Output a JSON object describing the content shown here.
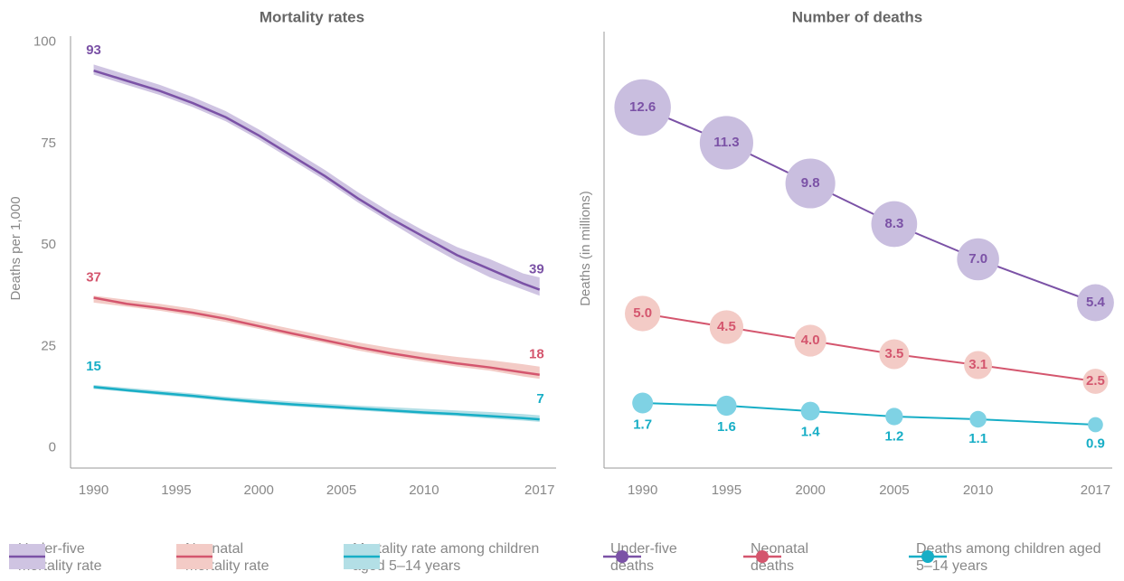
{
  "chart_data": [
    {
      "type": "line",
      "title": "Mortality rates",
      "y_label": "Deaths per 1,000",
      "x": [
        1990,
        1992,
        1994,
        1996,
        1998,
        2000,
        2002,
        2004,
        2006,
        2008,
        2010,
        2012,
        2014,
        2016,
        2017
      ],
      "xlim": [
        1988.6,
        2018
      ],
      "ylim": [
        -5,
        101.5
      ],
      "xticks": [
        1990,
        1995,
        2000,
        2005,
        2010,
        2017
      ],
      "yticks": [
        0,
        25,
        50,
        75,
        100
      ],
      "grid": false,
      "legend": "bottom",
      "series": [
        {
          "name": "Under-five mortality rate",
          "color": "#7b52a6",
          "band_color": "#cfc4e2",
          "values": [
            93,
            90.5,
            88,
            85,
            81.5,
            77,
            72,
            67,
            61.5,
            56.5,
            52,
            47.5,
            44,
            40.5,
            39
          ],
          "lower": [
            92,
            89.5,
            87,
            84,
            80.5,
            76,
            71,
            66,
            60.5,
            55.5,
            50.5,
            46,
            42,
            39,
            37.5
          ],
          "upper": [
            94.5,
            92,
            89.5,
            86.5,
            83,
            78.5,
            73.5,
            68.5,
            63,
            58,
            53.5,
            49.5,
            46.5,
            43,
            42
          ]
        },
        {
          "name": "Neonatal mortality rate",
          "color": "#d4566e",
          "band_color": "#f3cbc6",
          "values": [
            37,
            35.5,
            34.5,
            33.3,
            31.8,
            30,
            28.2,
            26.5,
            24.8,
            23.3,
            22,
            20.8,
            19.8,
            18.6,
            18
          ],
          "lower": [
            35.8,
            34.8,
            33.8,
            32.5,
            31,
            29.3,
            27.5,
            25.8,
            24,
            22.5,
            21.2,
            20,
            19,
            17.6,
            17
          ],
          "upper": [
            37.5,
            36.5,
            35.5,
            34.3,
            32.8,
            31,
            29.3,
            27.6,
            26,
            24.6,
            23.4,
            22.4,
            21.6,
            20.6,
            20
          ]
        },
        {
          "name": "Mortality rate among children aged 5–14 years",
          "color": "#17aec6",
          "band_color": "#b3dfe6",
          "values": [
            15,
            14.2,
            13.5,
            12.8,
            12,
            11.3,
            10.7,
            10.2,
            9.7,
            9.2,
            8.7,
            8.3,
            7.8,
            7.3,
            7
          ],
          "lower": [
            14.5,
            13.8,
            13,
            12.3,
            11.5,
            10.8,
            10.2,
            9.7,
            9.2,
            8.7,
            8.2,
            7.8,
            7.2,
            6.7,
            6.4
          ],
          "upper": [
            15.5,
            14.8,
            14.1,
            13.4,
            12.6,
            12,
            11.4,
            10.9,
            10.4,
            10,
            9.6,
            9.2,
            8.8,
            8.3,
            8
          ]
        }
      ]
    },
    {
      "type": "bubble",
      "title": "Number of deaths",
      "y_label": "Deaths (in millions)",
      "x": [
        1990,
        1995,
        2000,
        2005,
        2010,
        2017
      ],
      "xlim": [
        1987.7,
        2018
      ],
      "ylim": [
        -0.7,
        15.4
      ],
      "xticks": [
        1990,
        1995,
        2000,
        2005,
        2010,
        2017
      ],
      "legend": "bottom",
      "series": [
        {
          "name": "Under-five deaths",
          "color": "#7b52a6",
          "fill": "#c9bedf",
          "label_position": "inside",
          "values": [
            12.6,
            11.3,
            9.8,
            8.3,
            7.0,
            5.4
          ],
          "value_labels": [
            "12.6",
            "11.3",
            "9.8",
            "8.3",
            "7.0",
            "5.4"
          ]
        },
        {
          "name": "Neonatal deaths",
          "color": "#d4566e",
          "fill": "#f3cbc6",
          "label_position": "inside",
          "values": [
            5.0,
            4.5,
            4.0,
            3.5,
            3.1,
            2.5
          ],
          "value_labels": [
            "5.0",
            "4.5",
            "4.0",
            "3.5",
            "3.1",
            "2.5"
          ]
        },
        {
          "name": "Deaths among children aged 5–14 years",
          "color": "#17aec6",
          "fill": "#7fd2e4",
          "label_position": "below",
          "values": [
            1.7,
            1.6,
            1.4,
            1.2,
            1.1,
            0.9
          ],
          "value_labels": [
            "1.7",
            "1.6",
            "1.4",
            "1.2",
            "1.1",
            "0.9"
          ]
        }
      ]
    }
  ]
}
